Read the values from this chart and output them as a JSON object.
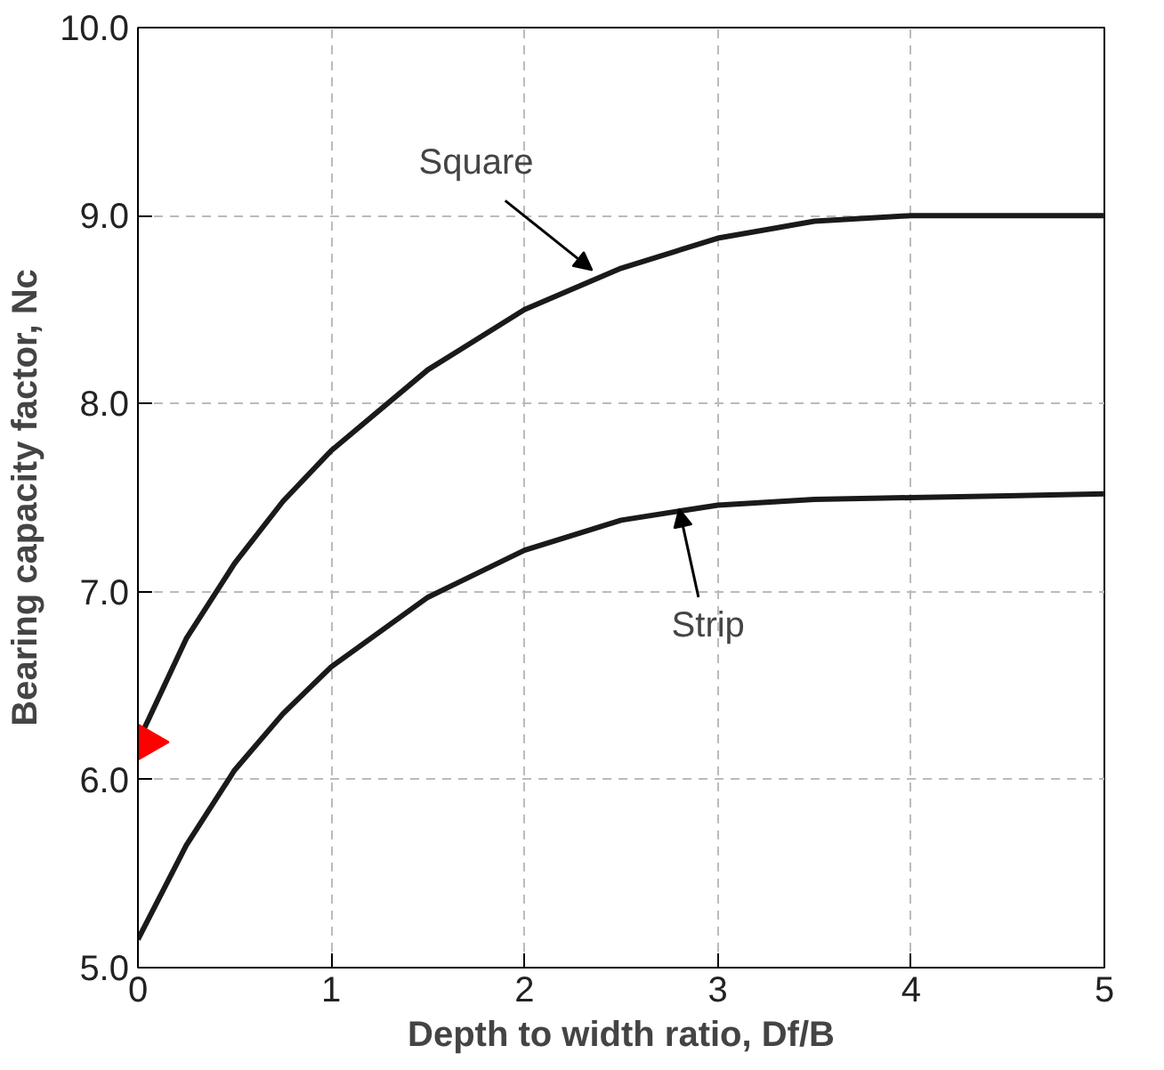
{
  "chart_data": {
    "type": "line",
    "xlabel": "Depth to width ratio, Df/B",
    "ylabel": "Bearing capacity factor, Nc",
    "x": [
      0,
      0.25,
      0.5,
      0.75,
      1,
      1.5,
      2,
      2.5,
      3,
      3.5,
      4,
      4.5,
      5
    ],
    "series": [
      {
        "color": "#1a1a1a",
        "values": [
          6.2,
          6.75,
          7.15,
          7.48,
          7.75,
          8.18,
          8.5,
          8.72,
          8.88,
          8.97,
          9.0,
          9.0,
          9.0
        ]
      },
      {
        "color": "#1a1a1a",
        "values": [
          5.15,
          5.65,
          6.05,
          6.35,
          6.6,
          6.97,
          7.22,
          7.38,
          7.46,
          7.49,
          7.5,
          7.51,
          7.52
        ]
      },
      {
        "type": "scatter",
        "marker": "triangle",
        "color": "#ff0000",
        "x": [
          0
        ],
        "values": [
          6.2
        ]
      }
    ],
    "annotations": [
      {
        "text": "Square",
        "x": 2.35,
        "y": 8.68
      },
      {
        "text": "Strip",
        "x": 2.8,
        "y": 7.47
      }
    ],
    "xlim": [
      0,
      5
    ],
    "ylim": [
      5,
      10
    ],
    "xticks": [
      0,
      1,
      2,
      3,
      4,
      5
    ],
    "yticks": [
      {
        "value": 5,
        "label": "5.0"
      },
      {
        "value": 6,
        "label": "6.0"
      },
      {
        "value": 7,
        "label": "7.0"
      },
      {
        "value": 8,
        "label": "8.0"
      },
      {
        "value": 9,
        "label": "9.0"
      },
      {
        "value": 10,
        "label": "10.0"
      }
    ],
    "grid": true,
    "line_style": "solid"
  }
}
